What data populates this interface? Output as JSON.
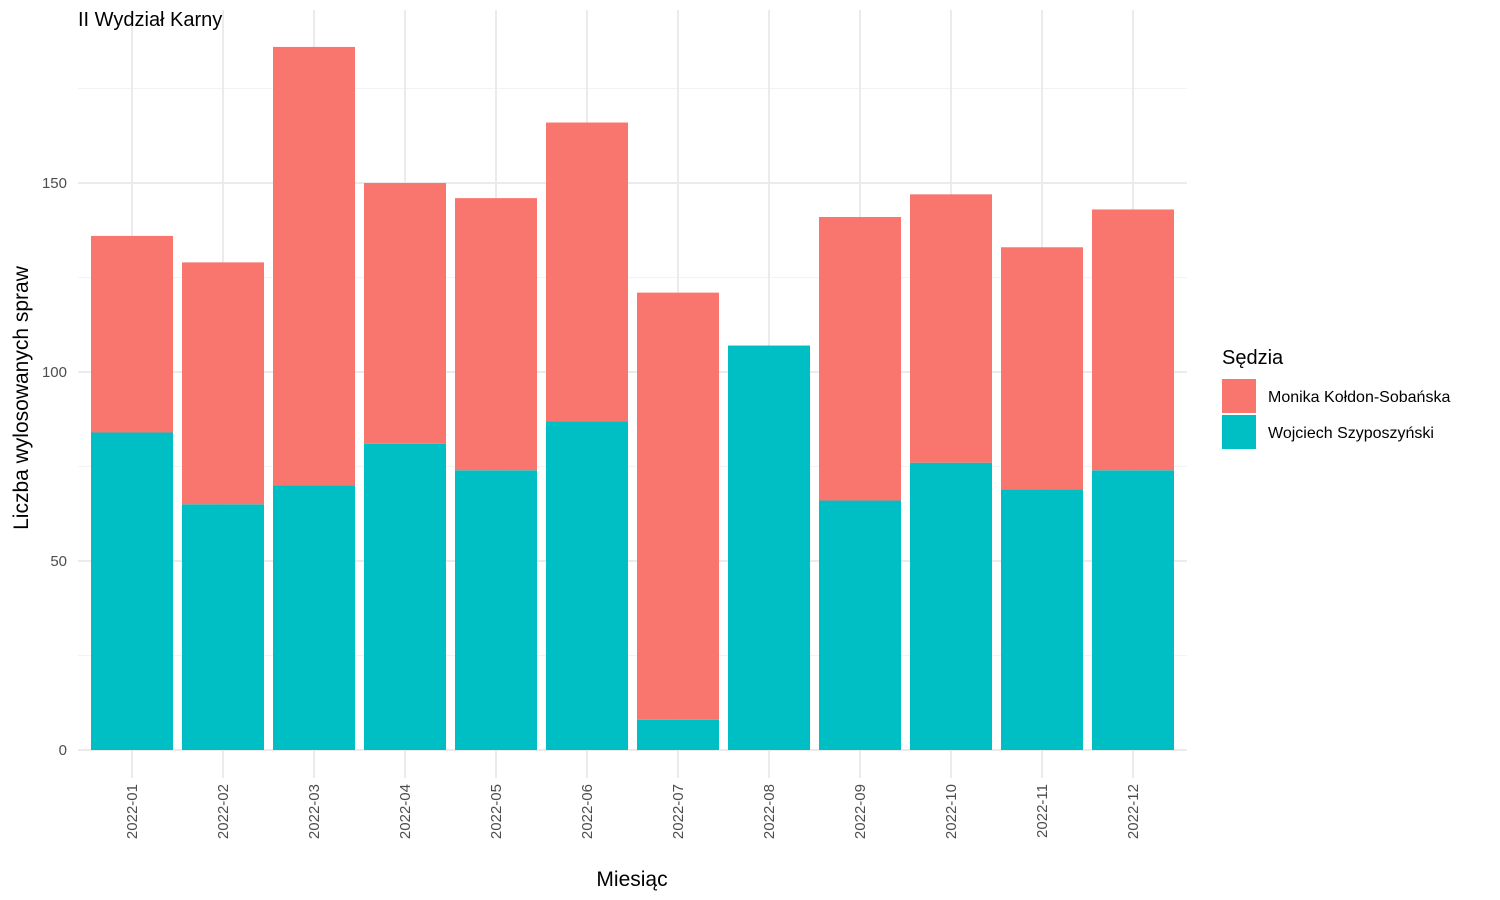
{
  "chart_data": {
    "type": "bar",
    "stacked": true,
    "title": "II Wydział Karny",
    "xlabel": "Miesiąc",
    "ylabel": "Liczba wylosowanych spraw",
    "categories": [
      "2022-01",
      "2022-02",
      "2022-03",
      "2022-04",
      "2022-05",
      "2022-06",
      "2022-07",
      "2022-08",
      "2022-09",
      "2022-10",
      "2022-11",
      "2022-12"
    ],
    "series": [
      {
        "name": "Monika Kołdon-Sobańska",
        "color": "#F8766D",
        "values": [
          52,
          64,
          116,
          69,
          72,
          79,
          113,
          0,
          75,
          71,
          64,
          69
        ]
      },
      {
        "name": "Wojciech Szyposzyński",
        "color": "#00BFC4",
        "values": [
          84,
          65,
          70,
          81,
          74,
          87,
          8,
          107,
          66,
          76,
          69,
          74
        ]
      }
    ],
    "stack_order_bottom_to_top": [
      "Wojciech Szyposzyński",
      "Monika Kołdon-Sobańska"
    ],
    "ylim": [
      0,
      186
    ],
    "yticks": [
      0,
      50,
      100,
      150
    ],
    "grid": true,
    "legend": {
      "title": "Sędzia",
      "placement": "right"
    }
  }
}
